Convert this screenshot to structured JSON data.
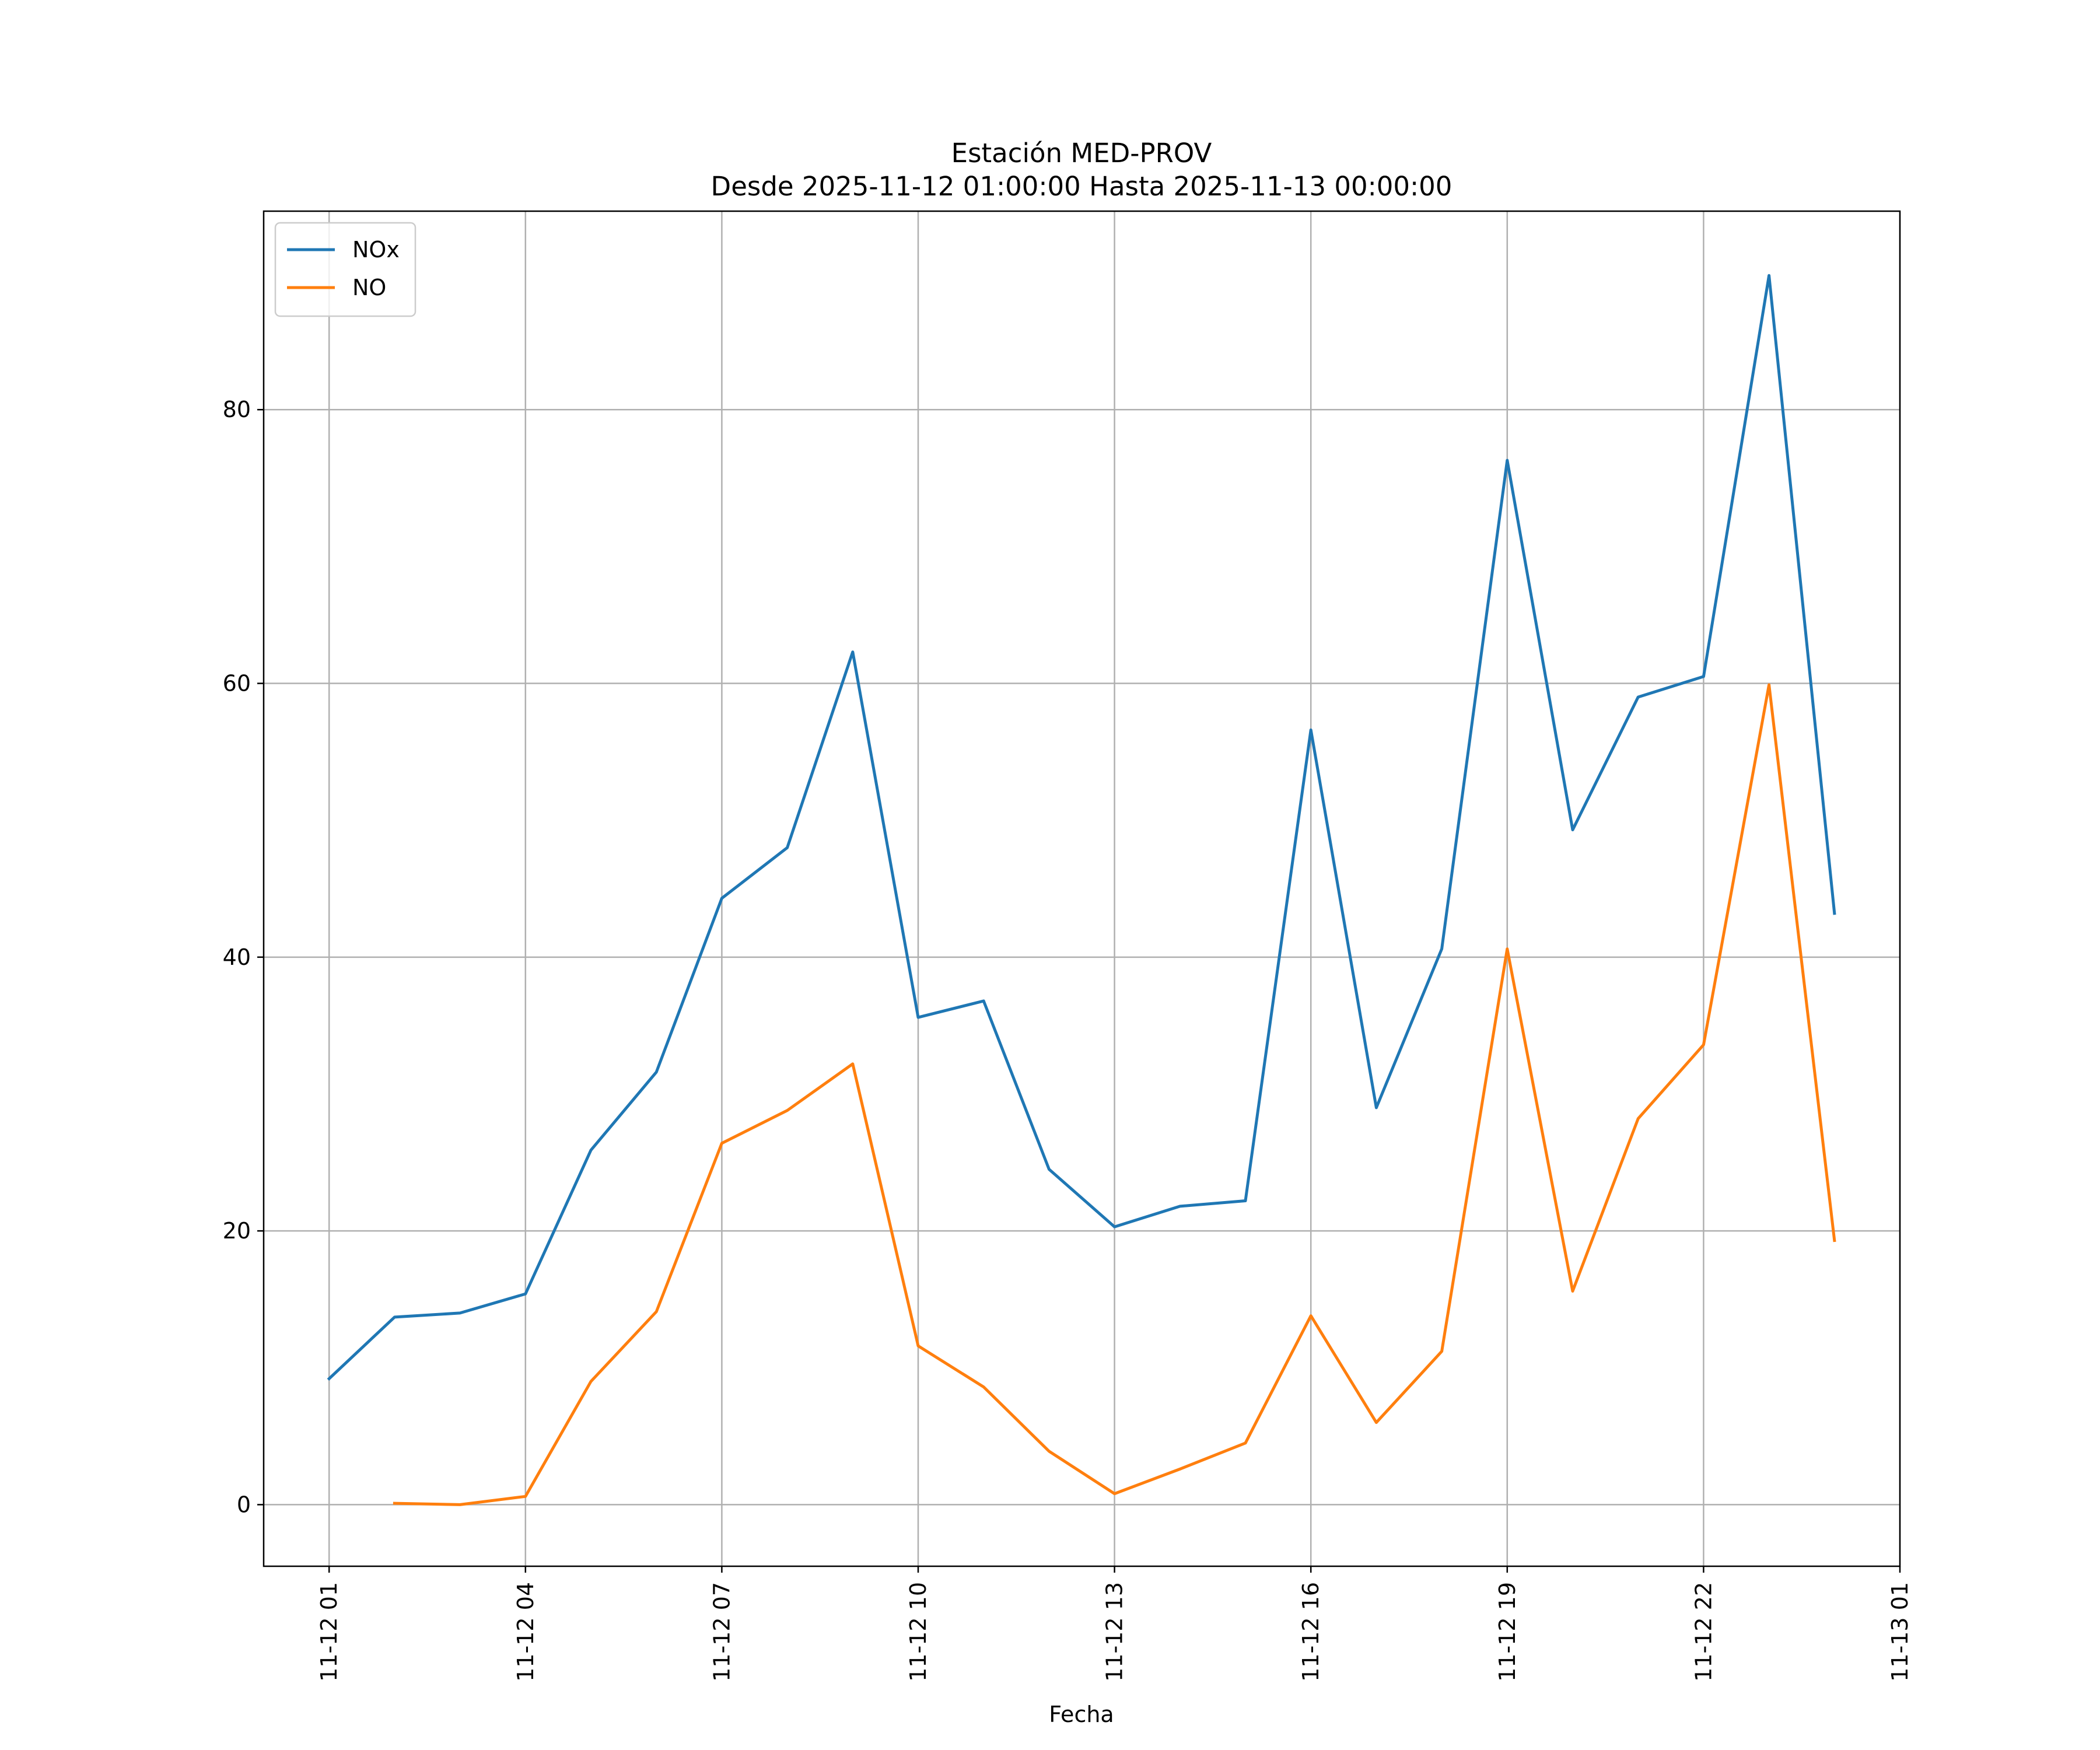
{
  "chart_data": {
    "type": "line",
    "title": "Estación MED-PROV",
    "subtitle": "Desde 2025-11-12 01:00:00 Hasta 2025-11-13 00:00:00",
    "xlabel": "Fecha",
    "ylabel": "",
    "x": [
      "2025-11-12 01:00",
      "2025-11-12 02:00",
      "2025-11-12 03:00",
      "2025-11-12 04:00",
      "2025-11-12 05:00",
      "2025-11-12 06:00",
      "2025-11-12 07:00",
      "2025-11-12 08:00",
      "2025-11-12 09:00",
      "2025-11-12 10:00",
      "2025-11-12 11:00",
      "2025-11-12 12:00",
      "2025-11-12 13:00",
      "2025-11-12 14:00",
      "2025-11-12 15:00",
      "2025-11-12 16:00",
      "2025-11-12 17:00",
      "2025-11-12 18:00",
      "2025-11-12 19:00",
      "2025-11-12 20:00",
      "2025-11-12 21:00",
      "2025-11-12 22:00",
      "2025-11-12 23:00",
      "2025-11-13 00:00"
    ],
    "xlim": [
      "2025-11-12 00:00",
      "2025-11-13 01:00"
    ],
    "ylim": [
      -4.5,
      94.5
    ],
    "xticks": [
      {
        "x": "2025-11-12 01:00",
        "label": "11-12 01"
      },
      {
        "x": "2025-11-12 04:00",
        "label": "11-12 04"
      },
      {
        "x": "2025-11-12 07:00",
        "label": "11-12 07"
      },
      {
        "x": "2025-11-12 10:00",
        "label": "11-12 10"
      },
      {
        "x": "2025-11-12 13:00",
        "label": "11-12 13"
      },
      {
        "x": "2025-11-12 16:00",
        "label": "11-12 16"
      },
      {
        "x": "2025-11-12 19:00",
        "label": "11-12 19"
      },
      {
        "x": "2025-11-12 22:00",
        "label": "11-12 22"
      },
      {
        "x": "2025-11-13 01:00",
        "label": "11-13 01"
      }
    ],
    "yticks": [
      0,
      20,
      40,
      60,
      80
    ],
    "grid": true,
    "legend_position": "top-left",
    "series": [
      {
        "name": "NOx",
        "color": "#1f77b4",
        "values": [
          9.2,
          13.7,
          14.0,
          15.4,
          25.9,
          31.6,
          44.3,
          48.0,
          62.3,
          35.6,
          36.8,
          24.5,
          20.3,
          21.8,
          22.2,
          56.6,
          29.0,
          40.6,
          76.3,
          49.3,
          59.0,
          60.5,
          89.8,
          43.2
        ]
      },
      {
        "name": "NO",
        "color": "#ff7f0e",
        "values": [
          null,
          0.1,
          0.0,
          0.6,
          9.0,
          14.1,
          26.4,
          28.8,
          32.2,
          11.6,
          8.6,
          3.9,
          0.8,
          2.6,
          4.5,
          13.8,
          6.0,
          11.2,
          40.6,
          15.6,
          28.2,
          33.6,
          59.9,
          19.3
        ]
      }
    ]
  }
}
